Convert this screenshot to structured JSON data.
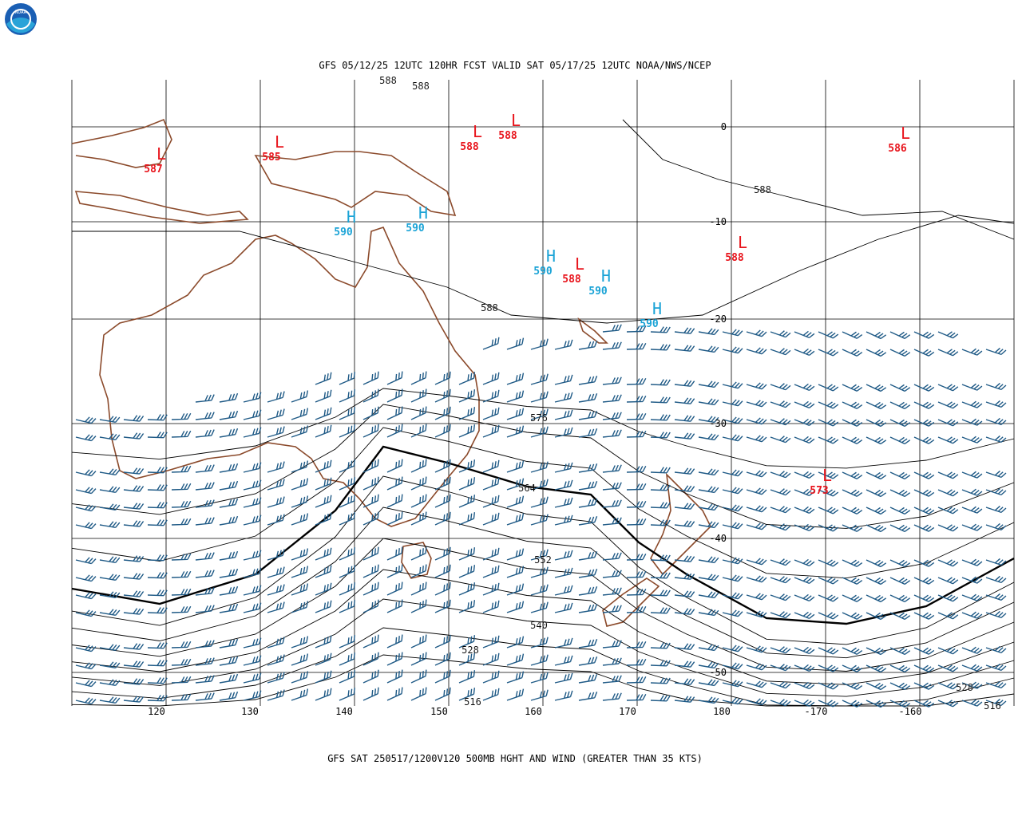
{
  "logo": "NOAA",
  "title": "GFS 05/12/25 12UTC 120HR FCST VALID SAT 05/17/25 12UTC NOAA/NWS/NCEP",
  "caption": "GFS SAT 250517/1200V120 500MB HGHT AND WIND (GREATER THAN 35 KTS)",
  "longitude_labels": [
    "120",
    "130",
    "140",
    "150",
    "160",
    "170",
    "180",
    "-170",
    "-160"
  ],
  "latitude_labels": [
    "0",
    "-10",
    "-20",
    "-30",
    "-40",
    "-50"
  ],
  "contour_labels": [
    588,
    588,
    588,
    588,
    576,
    564,
    552,
    540,
    528,
    516,
    528,
    516
  ],
  "centers": [
    {
      "type": "L",
      "value": 587
    },
    {
      "type": "L",
      "value": 585
    },
    {
      "type": "L",
      "value": 588
    },
    {
      "type": "L",
      "value": 588
    },
    {
      "type": "L",
      "value": 586
    },
    {
      "type": "H",
      "value": 590
    },
    {
      "type": "H",
      "value": 590
    },
    {
      "type": "H",
      "value": 590
    },
    {
      "type": "L",
      "value": 588
    },
    {
      "type": "H",
      "value": 590
    },
    {
      "type": "H",
      "value": 590
    },
    {
      "type": "L",
      "value": 588
    },
    {
      "type": "L",
      "value": 573
    }
  ]
}
